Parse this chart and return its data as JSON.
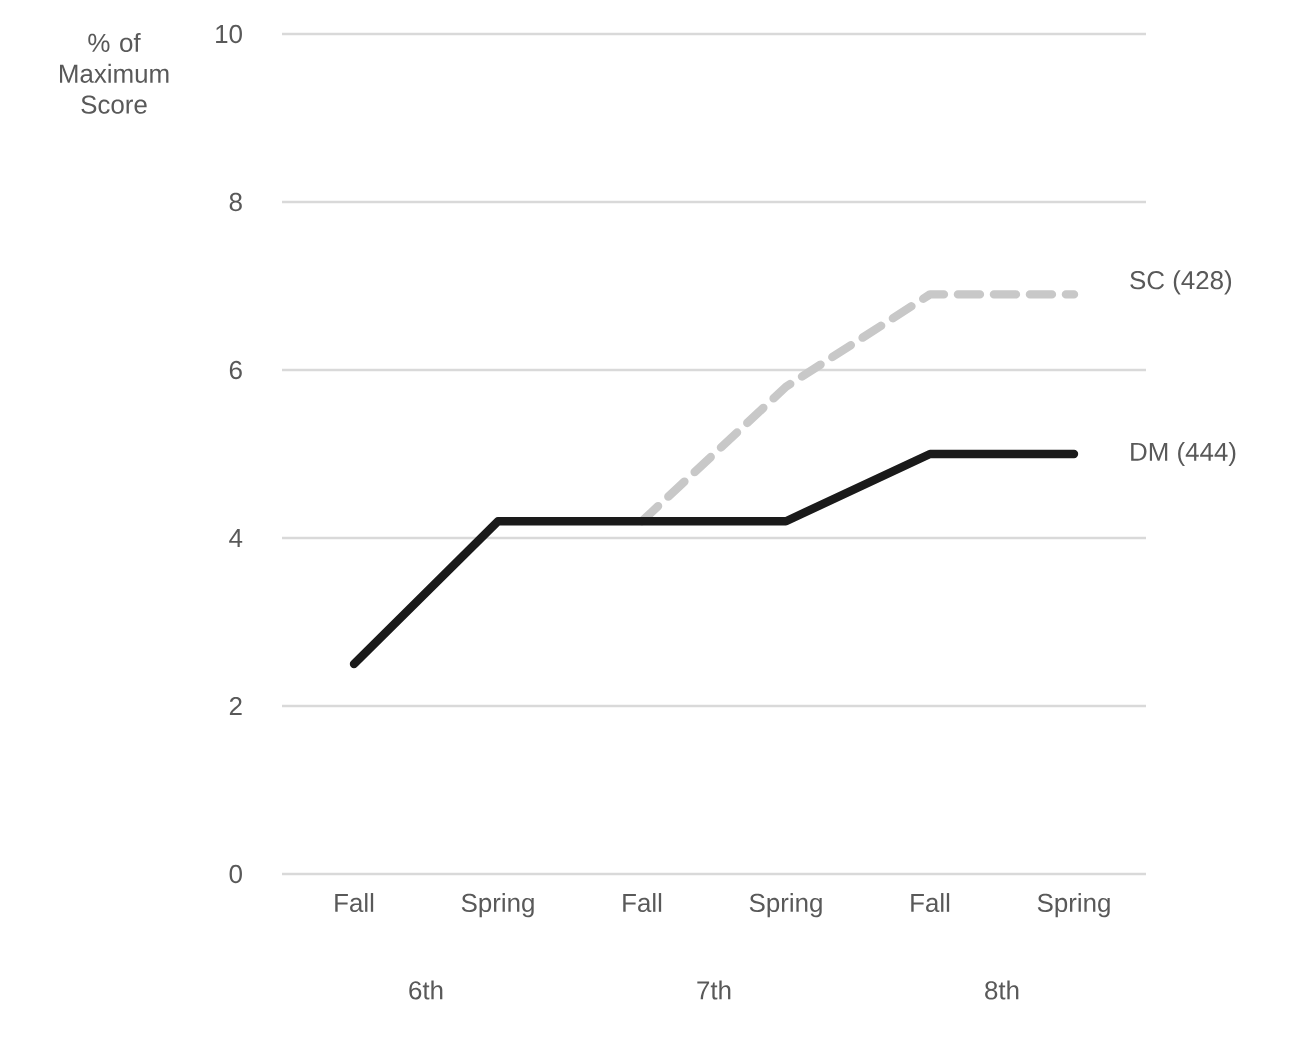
{
  "chart_data": {
    "type": "line",
    "ylabel": "% of Maximum Score",
    "categories": [
      "Fall",
      "Spring",
      "Fall",
      "Spring",
      "Fall",
      "Spring"
    ],
    "annotations": [
      "6th",
      "7th",
      "8th"
    ],
    "series": [
      {
        "name": "SC (428)",
        "color": "#c8c8c8",
        "line_style": "dashed",
        "values": [
          null,
          null,
          4.2,
          5.8,
          6.9,
          6.9
        ]
      },
      {
        "name": "DM (444)",
        "color": "#1a1a1a",
        "line_style": "solid",
        "values": [
          2.5,
          4.2,
          4.2,
          4.2,
          5,
          5
        ]
      }
    ],
    "ylim": [
      0,
      10
    ],
    "yticks": [
      0,
      2,
      4,
      6,
      8,
      10
    ],
    "grid": "y",
    "legend": false,
    "marker": "none"
  }
}
